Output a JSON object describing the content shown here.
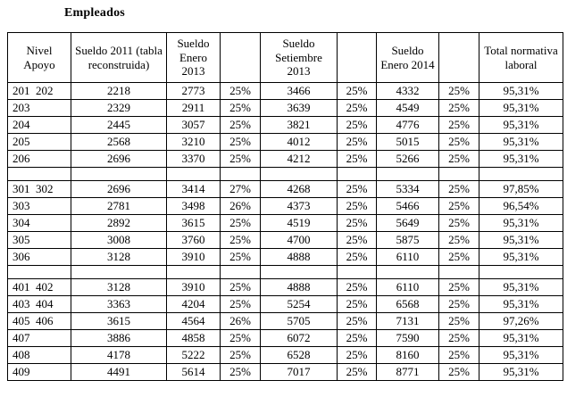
{
  "title": "Empleados",
  "table": {
    "headers": [
      "Nivel Apoyo",
      "Sueldo 2011 (tabla reconstruida)",
      "Sueldo Enero 2013",
      "",
      "Sueldo Setiembre 2013",
      "",
      "Sueldo Enero 2014",
      "",
      "Total normativa laboral"
    ],
    "rows": [
      {
        "cells": [
          "201  202",
          "2218",
          "2773",
          "25%",
          "3466",
          "25%",
          "4332",
          "25%",
          "95,31%"
        ]
      },
      {
        "cells": [
          "203",
          "2329",
          "2911",
          "25%",
          "3639",
          "25%",
          "4549",
          "25%",
          "95,31%"
        ]
      },
      {
        "cells": [
          "204",
          "2445",
          "3057",
          "25%",
          "3821",
          "25%",
          "4776",
          "25%",
          "95,31%"
        ]
      },
      {
        "cells": [
          "205",
          "2568",
          "3210",
          "25%",
          "4012",
          "25%",
          "5015",
          "25%",
          "95,31%"
        ]
      },
      {
        "cells": [
          "206",
          "2696",
          "3370",
          "25%",
          "4212",
          "25%",
          "5266",
          "25%",
          "95,31%"
        ]
      },
      {
        "spacer": true
      },
      {
        "cells": [
          "301  302",
          "2696",
          "3414",
          "27%",
          "4268",
          "25%",
          "5334",
          "25%",
          "97,85%"
        ]
      },
      {
        "cells": [
          "303",
          "2781",
          "3498",
          "26%",
          "4373",
          "25%",
          "5466",
          "25%",
          "96,54%"
        ]
      },
      {
        "cells": [
          "304",
          "2892",
          "3615",
          "25%",
          "4519",
          "25%",
          "5649",
          "25%",
          "95,31%"
        ]
      },
      {
        "cells": [
          "305",
          "3008",
          "3760",
          "25%",
          "4700",
          "25%",
          "5875",
          "25%",
          "95,31%"
        ]
      },
      {
        "cells": [
          "306",
          "3128",
          "3910",
          "25%",
          "4888",
          "25%",
          "6110",
          "25%",
          "95,31%"
        ]
      },
      {
        "spacer": true
      },
      {
        "cells": [
          "401  402",
          "3128",
          "3910",
          "25%",
          "4888",
          "25%",
          "6110",
          "25%",
          "95,31%"
        ]
      },
      {
        "cells": [
          "403  404",
          "3363",
          "4204",
          "25%",
          "5254",
          "25%",
          "6568",
          "25%",
          "95,31%"
        ]
      },
      {
        "cells": [
          "405  406",
          "3615",
          "4564",
          "26%",
          "5705",
          "25%",
          "7131",
          "25%",
          "97,26%"
        ]
      },
      {
        "cells": [
          "407",
          "3886",
          "4858",
          "25%",
          "6072",
          "25%",
          "7590",
          "25%",
          "95,31%"
        ]
      },
      {
        "cells": [
          "408",
          "4178",
          "5222",
          "25%",
          "6528",
          "25%",
          "8160",
          "25%",
          "95,31%"
        ]
      },
      {
        "cells": [
          "409",
          "4491",
          "5614",
          "25%",
          "7017",
          "25%",
          "8771",
          "25%",
          "95,31%"
        ]
      }
    ]
  }
}
